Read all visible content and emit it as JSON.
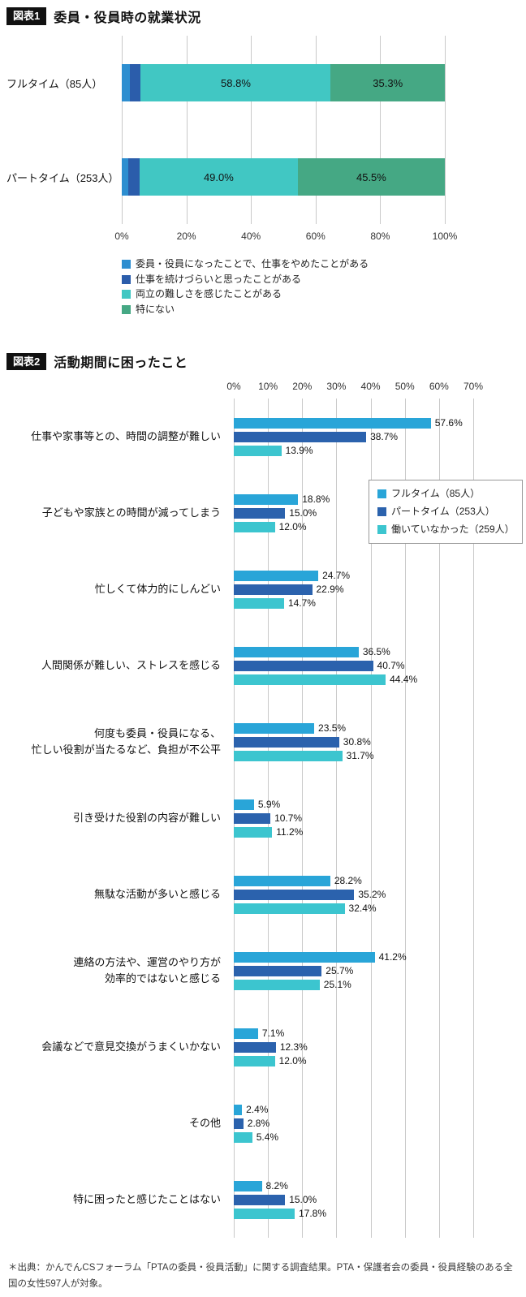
{
  "colors": {
    "grid": "#c9c9c9",
    "tag_background": "#111111",
    "chart1_blue": "#2d8ed0",
    "chart1_navy": "#2b5dab",
    "chart1_teal": "#41c7c3",
    "chart1_green": "#45a884",
    "chart2_fulltime": "#29a5d8",
    "chart2_parttime": "#2b62ad",
    "chart2_notworking": "#3cc5cf"
  },
  "footnote": "＊出典：かんでんCSフォーラム「PTAの委員・役員活動」に関する調査結果。PTA・保護者会の委員・役員経験のある全国の女性597人が対象。",
  "chart_data": [
    {
      "type": "bar",
      "orientation": "horizontal",
      "stacked": true,
      "figure_label": "図表1",
      "title": "委員・役員時の就業状況",
      "categories": [
        "フルタイム（85人）",
        "パートタイム（253人）"
      ],
      "series": [
        {
          "name": "委員・役員になったことで、仕事をやめたことがある",
          "color": "#2d8ed0",
          "values": [
            2.4,
            2.0
          ]
        },
        {
          "name": "仕事を続けづらいと思ったことがある",
          "color": "#2b5dab",
          "values": [
            3.5,
            3.5
          ]
        },
        {
          "name": "両立の難しさを感じたことがある",
          "color": "#41c7c3",
          "values": [
            58.8,
            49.0
          ]
        },
        {
          "name": "特にない",
          "color": "#45a884",
          "values": [
            35.3,
            45.5
          ]
        }
      ],
      "visible_value_labels": [
        "58.8%",
        "35.3%",
        "49.0%",
        "45.5%"
      ],
      "xlim": [
        0,
        100
      ],
      "xticks": [
        "0%",
        "20%",
        "40%",
        "60%",
        "80%",
        "100%"
      ],
      "grid": true,
      "legend_position": "bottom"
    },
    {
      "type": "bar",
      "orientation": "horizontal",
      "grouped": true,
      "figure_label": "図表2",
      "title": "活動期間に困ったこと",
      "categories": [
        "仕事や家事等との、時間の調整が難しい",
        "子どもや家族との時間が減ってしまう",
        "忙しくて体力的にしんどい",
        "人間関係が難しい、ストレスを感じる",
        "何度も委員・役員になる、\n忙しい役割が当たるなど、負担が不公平",
        "引き受けた役割の内容が難しい",
        "無駄な活動が多いと感じる",
        "連絡の方法や、運営のやり方が\n効率的ではないと感じる",
        "会議などで意見交換がうまくいかない",
        "その他",
        "特に困ったと感じたことはない"
      ],
      "series": [
        {
          "name": "フルタイム（85人）",
          "color": "#29a5d8",
          "values": [
            57.6,
            18.8,
            24.7,
            36.5,
            23.5,
            5.9,
            28.2,
            41.2,
            7.1,
            2.4,
            8.2
          ]
        },
        {
          "name": "パートタイム（253人）",
          "color": "#2b62ad",
          "values": [
            38.7,
            15.0,
            22.9,
            40.7,
            30.8,
            10.7,
            35.2,
            25.7,
            12.3,
            2.8,
            15.0
          ]
        },
        {
          "name": "働いていなかった（259人）",
          "color": "#3cc5cf",
          "values": [
            13.9,
            12.0,
            14.7,
            44.4,
            31.7,
            11.2,
            32.4,
            25.1,
            12.0,
            5.4,
            17.8
          ]
        }
      ],
      "xlim": [
        0,
        70
      ],
      "xticks": [
        "0%",
        "10%",
        "20%",
        "30%",
        "40%",
        "50%",
        "60%",
        "70%"
      ],
      "grid": true,
      "axis_position": "top",
      "legend_position": "inner-right-top"
    }
  ]
}
